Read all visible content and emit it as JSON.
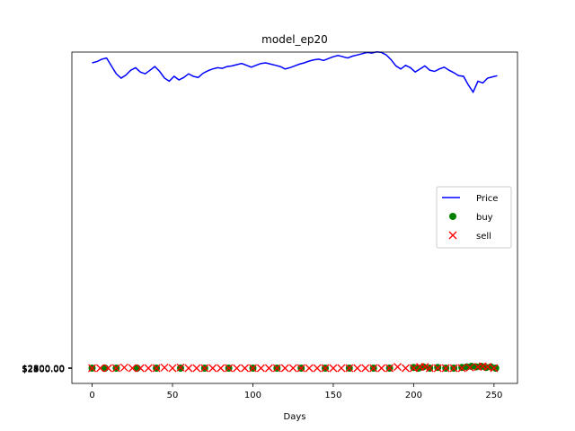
{
  "chart_data": {
    "type": "line",
    "title": "model_ep20",
    "xlabel": "Days",
    "ylabel": "",
    "xlim": [
      -12.6,
      264.6
    ],
    "ylim": [
      2300,
      2800
    ],
    "x_ticks": [
      0,
      50,
      100,
      150,
      200,
      250
    ],
    "y_tick_labels": [
      "$2300.00",
      "$2400.00",
      "$2500.00",
      "$2600.00",
      "$2700.00",
      "$2800.00"
    ],
    "grid": false,
    "legend_position": "center-right",
    "series": [
      {
        "name": "Price",
        "kind": "line",
        "color": "#0000ff",
        "x": [
          0,
          3,
          6,
          9,
          12,
          15,
          18,
          21,
          24,
          27,
          30,
          33,
          36,
          39,
          42,
          45,
          48,
          51,
          54,
          57,
          60,
          63,
          66,
          69,
          72,
          75,
          78,
          81,
          84,
          87,
          90,
          93,
          96,
          99,
          102,
          105,
          108,
          111,
          114,
          117,
          120,
          123,
          126,
          129,
          132,
          135,
          138,
          141,
          144,
          147,
          150,
          153,
          156,
          159,
          162,
          165,
          168,
          171,
          174,
          177,
          180,
          183,
          186,
          189,
          192,
          195,
          198,
          201,
          204,
          207,
          210,
          213,
          216,
          219,
          222,
          225,
          228,
          231,
          234,
          237,
          240,
          243,
          246,
          249,
          252
        ],
        "y": [
          2800,
          2802,
          2806,
          2808,
          2795,
          2782,
          2775,
          2780,
          2788,
          2792,
          2785,
          2782,
          2788,
          2794,
          2786,
          2775,
          2770,
          2778,
          2772,
          2776,
          2782,
          2778,
          2776,
          2783,
          2787,
          2790,
          2792,
          2791,
          2794,
          2795,
          2797,
          2799,
          2796,
          2793,
          2796,
          2799,
          2800,
          2798,
          2796,
          2794,
          2790,
          2792,
          2795,
          2798,
          2800,
          2803,
          2805,
          2806,
          2804,
          2807,
          2810,
          2812,
          2810,
          2808,
          2811,
          2813,
          2815,
          2817,
          2816,
          2818,
          2817,
          2813,
          2805,
          2795,
          2790,
          2796,
          2792,
          2785,
          2790,
          2795,
          2788,
          2786,
          2790,
          2793,
          2788,
          2784,
          2779,
          2778,
          2764,
          2752,
          2770,
          2767,
          2775,
          2777,
          2779
        ]
      },
      {
        "name": "buy",
        "kind": "scatter",
        "marker": "circle",
        "color": "#008000",
        "x": [
          0,
          8,
          15,
          28,
          40,
          55,
          70,
          85,
          100,
          115,
          130,
          145,
          160,
          175,
          185,
          200,
          203,
          206,
          210,
          215,
          220,
          225,
          230,
          233,
          236,
          239,
          242,
          245,
          248,
          251
        ],
        "y": [
          2300,
          2300,
          2300,
          2300,
          2300,
          2300,
          2300,
          2300,
          2300,
          2300,
          2300,
          2300,
          2300,
          2300,
          2300,
          2301,
          2300,
          2302,
          2300,
          2301,
          2300,
          2300,
          2301,
          2302,
          2303,
          2302,
          2303,
          2301,
          2302,
          2300
        ]
      },
      {
        "name": "sell",
        "kind": "scatter",
        "marker": "x",
        "color": "#ff0000",
        "x": [
          0,
          5,
          10,
          15,
          20,
          25,
          30,
          35,
          40,
          45,
          50,
          55,
          60,
          65,
          70,
          75,
          80,
          85,
          90,
          95,
          100,
          105,
          110,
          115,
          120,
          125,
          130,
          135,
          140,
          145,
          150,
          155,
          160,
          165,
          170,
          175,
          180,
          185,
          190,
          195,
          200,
          204,
          207,
          210,
          215,
          220,
          225,
          230,
          235,
          240,
          243,
          246,
          250
        ],
        "y": [
          2300,
          2300,
          2300,
          2300,
          2301,
          2300,
          2300,
          2300,
          2300,
          2301,
          2300,
          2301,
          2300,
          2300,
          2300,
          2300,
          2300,
          2300,
          2300,
          2300,
          2300,
          2300,
          2300,
          2300,
          2300,
          2300,
          2300,
          2300,
          2300,
          2300,
          2300,
          2300,
          2300,
          2300,
          2300,
          2300,
          2300,
          2300,
          2302,
          2300,
          2300,
          2302,
          2302,
          2300,
          2300,
          2300,
          2300,
          2300,
          2301,
          2302,
          2303,
          2302,
          2300
        ]
      }
    ]
  }
}
